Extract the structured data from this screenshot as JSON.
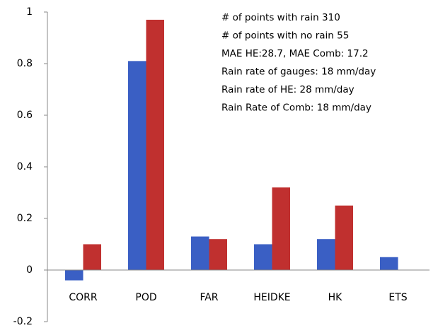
{
  "chart_data": {
    "type": "bar",
    "categories": [
      "CORR",
      "POD",
      "FAR",
      "HEIDKE",
      "HK",
      "ETS"
    ],
    "series": [
      {
        "color": "#3a5fc4",
        "values": [
          -0.04,
          0.81,
          0.13,
          0.1,
          0.12,
          0.05
        ]
      },
      {
        "color": "#c0302f",
        "values": [
          0.1,
          0.97,
          0.12,
          0.32,
          0.25,
          0
        ]
      }
    ],
    "ylim": [
      -0.2,
      1
    ],
    "yticks": [
      -0.2,
      0,
      0.2,
      0.4,
      0.6,
      0.8,
      1
    ],
    "annotations": [
      "# of points  with rain 310",
      "# of points  with no rain 55",
      "MAE HE:28.7, MAE Comb:  17.2",
      "Rain rate of gauges: 18 mm/day",
      "Rain rate of HE: 28 mm/day",
      "Rain Rate of Comb: 18 mm/day"
    ],
    "grid": false
  }
}
